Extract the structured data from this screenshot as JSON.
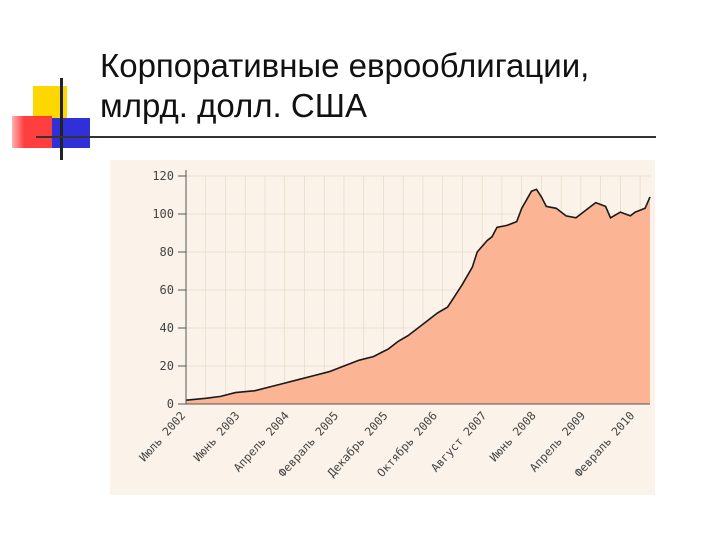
{
  "slide": {
    "title_line1": "Корпоративные еврооблигации,",
    "title_line2": "млрд. долл. США"
  },
  "colors": {
    "area_fill": "#fbb494",
    "line": "#1a1a1a",
    "plot_bg": "#fbf3e9",
    "grid": "#e8d8c6"
  },
  "chart_data": {
    "type": "area",
    "title": "Корпоративные еврооблигации, млрд. долл. США",
    "xlabel": "",
    "ylabel": "",
    "ylim": [
      0,
      120
    ],
    "yticks": [
      "0",
      "20",
      "40",
      "60",
      "80",
      "100",
      "120"
    ],
    "grid": true,
    "x_ticks": [
      {
        "label": "Июль 2002",
        "date": "2002-07"
      },
      {
        "label": "Июнь 2003",
        "date": "2003-06"
      },
      {
        "label": "Апрель 2004",
        "date": "2004-04"
      },
      {
        "label": "Февраль 2005",
        "date": "2005-02"
      },
      {
        "label": "Декабрь 2005",
        "date": "2005-12"
      },
      {
        "label": "Октябрь 2006",
        "date": "2006-10"
      },
      {
        "label": "Август 2007",
        "date": "2007-08"
      },
      {
        "label": "Июнь 2008",
        "date": "2008-06"
      },
      {
        "label": "Апрель 2009",
        "date": "2009-04"
      },
      {
        "label": "Февраль 2010",
        "date": "2010-02"
      }
    ],
    "series": [
      {
        "points": [
          [
            "2002-07",
            2
          ],
          [
            "2002-11",
            3
          ],
          [
            "2003-02",
            4
          ],
          [
            "2003-05",
            6
          ],
          [
            "2003-09",
            7
          ],
          [
            "2003-12",
            9
          ],
          [
            "2004-03",
            11
          ],
          [
            "2004-06",
            13
          ],
          [
            "2004-09",
            15
          ],
          [
            "2004-12",
            17
          ],
          [
            "2005-03",
            20
          ],
          [
            "2005-06",
            23
          ],
          [
            "2005-09",
            25
          ],
          [
            "2005-12",
            29
          ],
          [
            "2006-02",
            33
          ],
          [
            "2006-04",
            36
          ],
          [
            "2006-06",
            40
          ],
          [
            "2006-08",
            44
          ],
          [
            "2006-10",
            48
          ],
          [
            "2006-12",
            51
          ],
          [
            "2007-02",
            59
          ],
          [
            "2007-03",
            63
          ],
          [
            "2007-05",
            72
          ],
          [
            "2007-06",
            80
          ],
          [
            "2007-08",
            86
          ],
          [
            "2007-09",
            88
          ],
          [
            "2007-10",
            93
          ],
          [
            "2007-12",
            94
          ],
          [
            "2008-02",
            96
          ],
          [
            "2008-03",
            103
          ],
          [
            "2008-05",
            112
          ],
          [
            "2008-06",
            113
          ],
          [
            "2008-07",
            109
          ],
          [
            "2008-08",
            104
          ],
          [
            "2008-10",
            103
          ],
          [
            "2008-12",
            99
          ],
          [
            "2009-02",
            98
          ],
          [
            "2009-03",
            100
          ],
          [
            "2009-05",
            104
          ],
          [
            "2009-06",
            106
          ],
          [
            "2009-08",
            104
          ],
          [
            "2009-09",
            98
          ],
          [
            "2009-11",
            101
          ],
          [
            "2010-01",
            99
          ],
          [
            "2010-02",
            101
          ],
          [
            "2010-04",
            103
          ],
          [
            "2010-05",
            109
          ]
        ]
      }
    ]
  }
}
